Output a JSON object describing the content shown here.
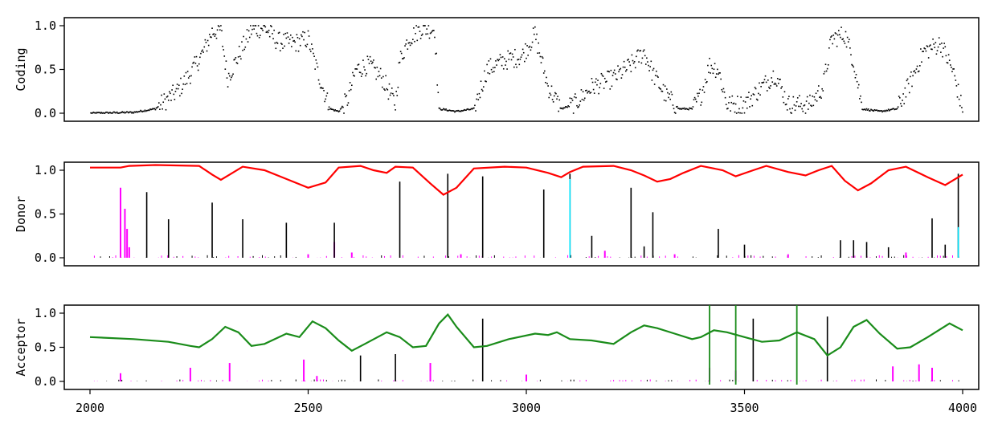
{
  "chart_data": [
    {
      "type": "scatter",
      "ylabel": "Coding",
      "xlim": [
        2000,
        4000
      ],
      "ylim": [
        0.0,
        1.0
      ],
      "yticks": [
        "0.0",
        "0.5",
        "1.0"
      ],
      "point_color": "#000000",
      "profile": [
        [
          2000,
          0.0
        ],
        [
          2100,
          0.01
        ],
        [
          2150,
          0.05
        ],
        [
          2200,
          0.25
        ],
        [
          2230,
          0.45
        ],
        [
          2260,
          0.7
        ],
        [
          2280,
          0.93
        ],
        [
          2300,
          0.95
        ],
        [
          2315,
          0.4
        ],
        [
          2340,
          0.65
        ],
        [
          2370,
          0.95
        ],
        [
          2400,
          0.98
        ],
        [
          2430,
          0.82
        ],
        [
          2470,
          0.8
        ],
        [
          2500,
          0.85
        ],
        [
          2520,
          0.5
        ],
        [
          2550,
          0.05
        ],
        [
          2570,
          0.02
        ],
        [
          2590,
          0.15
        ],
        [
          2610,
          0.5
        ],
        [
          2640,
          0.55
        ],
        [
          2670,
          0.4
        ],
        [
          2700,
          0.1
        ],
        [
          2710,
          0.6
        ],
        [
          2730,
          0.85
        ],
        [
          2760,
          0.97
        ],
        [
          2790,
          0.96
        ],
        [
          2800,
          0.05
        ],
        [
          2840,
          0.02
        ],
        [
          2880,
          0.05
        ],
        [
          2910,
          0.5
        ],
        [
          2950,
          0.6
        ],
        [
          2990,
          0.65
        ],
        [
          3020,
          0.9
        ],
        [
          3050,
          0.3
        ],
        [
          3080,
          0.05
        ],
        [
          3110,
          0.1
        ],
        [
          3150,
          0.3
        ],
        [
          3200,
          0.4
        ],
        [
          3240,
          0.55
        ],
        [
          3270,
          0.7
        ],
        [
          3290,
          0.45
        ],
        [
          3320,
          0.2
        ],
        [
          3350,
          0.05
        ],
        [
          3380,
          0.05
        ],
        [
          3400,
          0.2
        ],
        [
          3420,
          0.55
        ],
        [
          3440,
          0.5
        ],
        [
          3460,
          0.1
        ],
        [
          3500,
          0.1
        ],
        [
          3540,
          0.3
        ],
        [
          3570,
          0.45
        ],
        [
          3600,
          0.1
        ],
        [
          3650,
          0.1
        ],
        [
          3680,
          0.3
        ],
        [
          3700,
          0.85
        ],
        [
          3730,
          0.9
        ],
        [
          3750,
          0.6
        ],
        [
          3770,
          0.05
        ],
        [
          3810,
          0.02
        ],
        [
          3850,
          0.05
        ],
        [
          3880,
          0.35
        ],
        [
          3910,
          0.7
        ],
        [
          3950,
          0.8
        ],
        [
          3980,
          0.45
        ],
        [
          4000,
          0.02
        ]
      ]
    },
    {
      "type": "line+bar",
      "ylabel": "Donor",
      "xlim": [
        2000,
        4000
      ],
      "ylim": [
        0.0,
        1.0
      ],
      "yticks": [
        "0.0",
        "0.5",
        "1.0"
      ],
      "line_color": "#ff0000",
      "line": [
        [
          2000,
          1.03
        ],
        [
          2070,
          1.03
        ],
        [
          2090,
          1.05
        ],
        [
          2150,
          1.06
        ],
        [
          2250,
          1.05
        ],
        [
          2280,
          0.95
        ],
        [
          2300,
          0.89
        ],
        [
          2320,
          0.95
        ],
        [
          2350,
          1.04
        ],
        [
          2400,
          1.0
        ],
        [
          2450,
          0.9
        ],
        [
          2500,
          0.8
        ],
        [
          2540,
          0.86
        ],
        [
          2570,
          1.03
        ],
        [
          2620,
          1.05
        ],
        [
          2650,
          1.0
        ],
        [
          2680,
          0.97
        ],
        [
          2700,
          1.04
        ],
        [
          2740,
          1.03
        ],
        [
          2780,
          0.85
        ],
        [
          2810,
          0.72
        ],
        [
          2840,
          0.8
        ],
        [
          2880,
          1.02
        ],
        [
          2950,
          1.04
        ],
        [
          3000,
          1.03
        ],
        [
          3050,
          0.97
        ],
        [
          3080,
          0.92
        ],
        [
          3100,
          0.98
        ],
        [
          3130,
          1.04
        ],
        [
          3200,
          1.05
        ],
        [
          3240,
          1.0
        ],
        [
          3270,
          0.94
        ],
        [
          3300,
          0.87
        ],
        [
          3330,
          0.9
        ],
        [
          3360,
          0.97
        ],
        [
          3400,
          1.05
        ],
        [
          3450,
          1.0
        ],
        [
          3480,
          0.93
        ],
        [
          3520,
          1.0
        ],
        [
          3550,
          1.05
        ],
        [
          3600,
          0.98
        ],
        [
          3640,
          0.94
        ],
        [
          3670,
          1.0
        ],
        [
          3700,
          1.05
        ],
        [
          3730,
          0.88
        ],
        [
          3760,
          0.77
        ],
        [
          3790,
          0.85
        ],
        [
          3830,
          1.0
        ],
        [
          3870,
          1.04
        ],
        [
          3920,
          0.92
        ],
        [
          3960,
          0.83
        ],
        [
          4000,
          0.95
        ]
      ],
      "spikes": [
        [
          2130,
          0.75
        ],
        [
          2180,
          0.44
        ],
        [
          2280,
          0.63
        ],
        [
          2350,
          0.44
        ],
        [
          2450,
          0.4
        ],
        [
          2560,
          0.4
        ],
        [
          2710,
          0.87
        ],
        [
          2820,
          0.96
        ],
        [
          2900,
          0.93
        ],
        [
          3040,
          0.78
        ],
        [
          3100,
          0.96
        ],
        [
          3150,
          0.25
        ],
        [
          3240,
          0.8
        ],
        [
          3270,
          0.13
        ],
        [
          3290,
          0.52
        ],
        [
          3440,
          0.33
        ],
        [
          3500,
          0.15
        ],
        [
          3720,
          0.2
        ],
        [
          3750,
          0.2
        ],
        [
          3780,
          0.18
        ],
        [
          3830,
          0.12
        ],
        [
          3930,
          0.45
        ],
        [
          3960,
          0.15
        ],
        [
          3990,
          0.96
        ]
      ],
      "minor_spikes": [
        [
          2070,
          0.8
        ],
        [
          2080,
          0.56
        ],
        [
          2085,
          0.33
        ],
        [
          2090,
          0.12
        ],
        [
          2500,
          0.04
        ],
        [
          2560,
          0.18
        ],
        [
          2600,
          0.06
        ],
        [
          2850,
          0.04
        ],
        [
          3180,
          0.08
        ],
        [
          3340,
          0.04
        ],
        [
          3600,
          0.04
        ],
        [
          3870,
          0.06
        ]
      ],
      "cyan_spikes": [
        [
          3100,
          0.9
        ],
        [
          3990,
          0.35
        ]
      ]
    },
    {
      "type": "line+bar",
      "ylabel": "Acceptor",
      "xlim": [
        2000,
        4000
      ],
      "ylim": [
        0.0,
        1.0
      ],
      "yticks": [
        "0.0",
        "0.5",
        "1.0"
      ],
      "xticks": [
        "2000",
        "2500",
        "3000",
        "3500",
        "4000"
      ],
      "line_color": "#1a8c1a",
      "line": [
        [
          2000,
          0.65
        ],
        [
          2100,
          0.62
        ],
        [
          2180,
          0.58
        ],
        [
          2230,
          0.52
        ],
        [
          2250,
          0.5
        ],
        [
          2280,
          0.62
        ],
        [
          2310,
          0.8
        ],
        [
          2340,
          0.72
        ],
        [
          2370,
          0.52
        ],
        [
          2400,
          0.55
        ],
        [
          2450,
          0.7
        ],
        [
          2480,
          0.65
        ],
        [
          2510,
          0.88
        ],
        [
          2540,
          0.78
        ],
        [
          2570,
          0.6
        ],
        [
          2600,
          0.45
        ],
        [
          2630,
          0.55
        ],
        [
          2680,
          0.72
        ],
        [
          2710,
          0.65
        ],
        [
          2740,
          0.5
        ],
        [
          2770,
          0.52
        ],
        [
          2800,
          0.85
        ],
        [
          2820,
          0.98
        ],
        [
          2840,
          0.8
        ],
        [
          2880,
          0.5
        ],
        [
          2910,
          0.52
        ],
        [
          2960,
          0.62
        ],
        [
          3020,
          0.7
        ],
        [
          3050,
          0.68
        ],
        [
          3070,
          0.72
        ],
        [
          3100,
          0.62
        ],
        [
          3150,
          0.6
        ],
        [
          3200,
          0.55
        ],
        [
          3240,
          0.72
        ],
        [
          3270,
          0.82
        ],
        [
          3300,
          0.78
        ],
        [
          3340,
          0.7
        ],
        [
          3380,
          0.62
        ],
        [
          3400,
          0.65
        ],
        [
          3430,
          0.75
        ],
        [
          3460,
          0.72
        ],
        [
          3500,
          0.65
        ],
        [
          3540,
          0.58
        ],
        [
          3580,
          0.6
        ],
        [
          3620,
          0.72
        ],
        [
          3660,
          0.62
        ],
        [
          3690,
          0.38
        ],
        [
          3720,
          0.5
        ],
        [
          3750,
          0.8
        ],
        [
          3780,
          0.9
        ],
        [
          3810,
          0.7
        ],
        [
          3850,
          0.48
        ],
        [
          3880,
          0.5
        ],
        [
          3920,
          0.65
        ],
        [
          3970,
          0.85
        ],
        [
          4000,
          0.75
        ]
      ],
      "spikes": [
        [
          2620,
          0.38
        ],
        [
          2700,
          0.4
        ],
        [
          2900,
          0.92
        ],
        [
          3520,
          0.92
        ],
        [
          3690,
          0.95
        ]
      ],
      "minor_spikes": [
        [
          2070,
          0.12
        ],
        [
          2230,
          0.2
        ],
        [
          2320,
          0.27
        ],
        [
          2490,
          0.32
        ],
        [
          2520,
          0.08
        ],
        [
          2780,
          0.27
        ],
        [
          3000,
          0.1
        ],
        [
          3420,
          0.2
        ],
        [
          3480,
          0.16
        ],
        [
          3840,
          0.22
        ],
        [
          3900,
          0.25
        ],
        [
          3930,
          0.2
        ]
      ],
      "vlines": [
        3420,
        3480,
        3620
      ],
      "vline_color": "#1a8c1a"
    }
  ]
}
